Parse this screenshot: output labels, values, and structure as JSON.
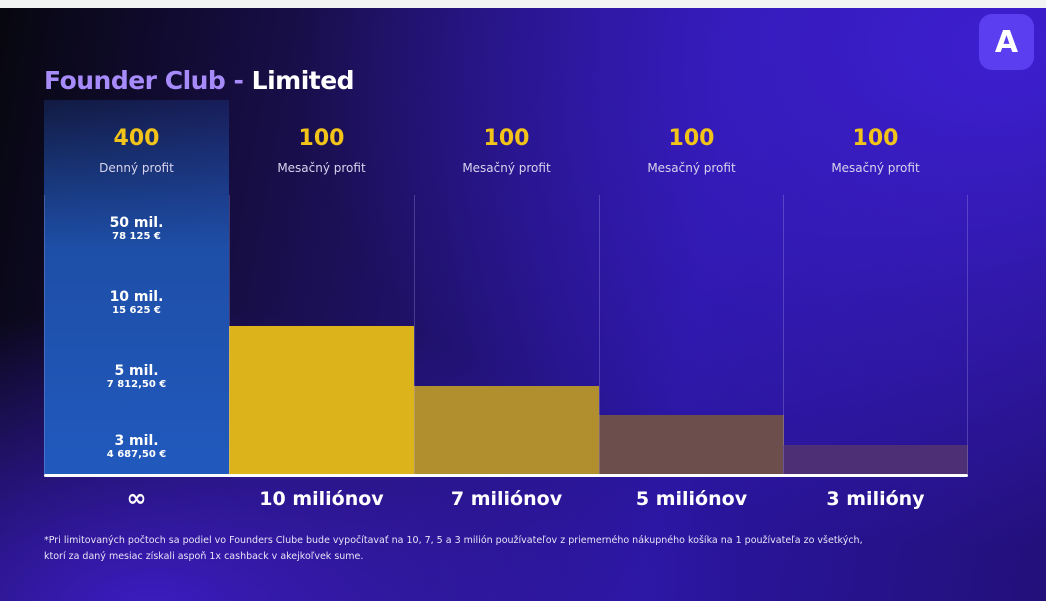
{
  "title": {
    "part1": "Founder Club -",
    "part2": "Limited"
  },
  "logo": {
    "letter": "A"
  },
  "columns": [
    {
      "profit": "400",
      "profit_label": "Denný profit",
      "bottom_label": "∞",
      "tiers": [
        {
          "users": "50 mil.",
          "amount": "78 125 €"
        },
        {
          "users": "10 mil.",
          "amount": "15 625 €"
        },
        {
          "users": "5 mil.",
          "amount": "7 812,50 €"
        },
        {
          "users": "3 mil.",
          "amount": "4 687,50 €"
        }
      ]
    },
    {
      "profit": "100",
      "profit_label": "Mesačný profit",
      "bottom_label": "10 miliónov",
      "fill": 0.53,
      "color": "#dcb31b"
    },
    {
      "profit": "100",
      "profit_label": "Mesačný profit",
      "bottom_label": "7 miliónov",
      "fill": 0.315,
      "color": "#b18f2f"
    },
    {
      "profit": "100",
      "profit_label": "Mesačný profit",
      "bottom_label": "5 miliónov",
      "fill": 0.21,
      "color": "#6c4f4c"
    },
    {
      "profit": "100",
      "profit_label": "Mesačný profit",
      "bottom_label": "3 milióny",
      "fill": 0.104,
      "color": "#4c2f74"
    }
  ],
  "footnote": {
    "line1": "*Pri limitovaných počtoch sa podiel vo Founders Clube bude vypočítavať na 10, 7, 5 a 3 milión používateľov z priemerného nákupného košíka na 1 používateľa zo všetkých,",
    "line2": "ktorí za daný mesiac získali aspoň 1x cashback v akejkoľvek sume."
  }
}
